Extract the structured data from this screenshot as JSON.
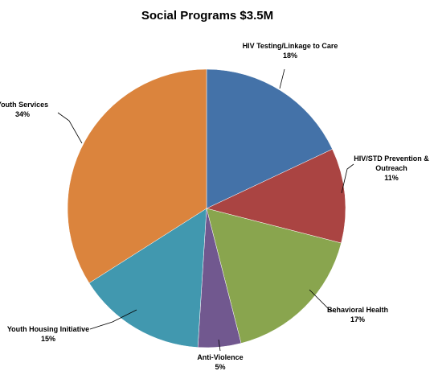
{
  "chart_data": {
    "type": "pie",
    "title": "Social Programs $3.5M",
    "slices": [
      {
        "name": "HIV Testing/Linkage to Care",
        "value": 18,
        "percent_label": "18%",
        "color": "#4472A8"
      },
      {
        "name": "HIV/STD Prevention & Outreach",
        "value": 11,
        "percent_label": "11%",
        "color": "#AA4442"
      },
      {
        "name": "Behavioral Health",
        "value": 17,
        "percent_label": "17%",
        "color": "#89A54E"
      },
      {
        "name": "Anti-Violence",
        "value": 5,
        "percent_label": "5%",
        "color": "#71588F"
      },
      {
        "name": "Youth Housing Initiative",
        "value": 15,
        "percent_label": "15%",
        "color": "#4198AF"
      },
      {
        "name": "Youth Services",
        "value": 34,
        "percent_label": "34%",
        "color": "#DB843D"
      }
    ],
    "legend": "none",
    "label_placement": "outside-with-leader-lines"
  }
}
